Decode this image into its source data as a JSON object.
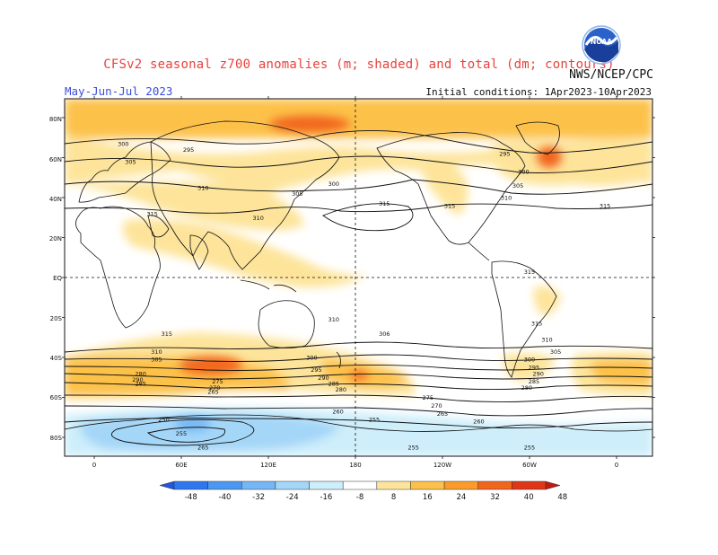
{
  "title": "CFSv2 seasonal z700 anomalies (m; shaded) and total (dm; contours)",
  "agency": "NWS/NCEP/CPC",
  "period": "May-Jun-Jul 2023",
  "initial_conditions": "Initial conditions: 1Apr2023-10Apr2023",
  "logo_text": "NOAA",
  "lat_labels": [
    "80N",
    "60N",
    "40N",
    "20N",
    "EQ",
    "20S",
    "40S",
    "60S",
    "80S"
  ],
  "lon_labels": [
    "0",
    "60E",
    "120E",
    "180",
    "120W",
    "60W",
    "0"
  ],
  "colorbar": {
    "ticks": [
      "-48",
      "-40",
      "-32",
      "-24",
      "-16",
      "-8",
      "8",
      "16",
      "24",
      "32",
      "40",
      "48"
    ],
    "colors": [
      "#2355e0",
      "#2f77ee",
      "#4a98f2",
      "#75b6f4",
      "#a4d6f8",
      "#cdeefa",
      "#ffffff",
      "#fde49a",
      "#fcc14a",
      "#fa9b2a",
      "#f2651c",
      "#e03516",
      "#c21a10"
    ]
  },
  "contour_labels": [
    {
      "text": "300",
      "lon": 20,
      "lat": 67
    },
    {
      "text": "295",
      "lon": 65,
      "lat": 64
    },
    {
      "text": "305",
      "lon": 25,
      "lat": 58
    },
    {
      "text": "310",
      "lon": 75,
      "lat": 45
    },
    {
      "text": "315",
      "lon": 40,
      "lat": 32
    },
    {
      "text": "310",
      "lon": 113,
      "lat": 30
    },
    {
      "text": "305",
      "lon": 140,
      "lat": 42
    },
    {
      "text": "300",
      "lon": 165,
      "lat": 47
    },
    {
      "text": "315",
      "lon": 200,
      "lat": 37
    },
    {
      "text": "315",
      "lon": 245,
      "lat": 36
    },
    {
      "text": "310",
      "lon": 284,
      "lat": 40
    },
    {
      "text": "305",
      "lon": 292,
      "lat": 46
    },
    {
      "text": "300",
      "lon": 296,
      "lat": 53
    },
    {
      "text": "295",
      "lon": 283,
      "lat": 62
    },
    {
      "text": "315",
      "lon": 352,
      "lat": 36
    },
    {
      "text": "315",
      "lon": 300,
      "lat": 3
    },
    {
      "text": "315",
      "lon": 305,
      "lat": -23
    },
    {
      "text": "310",
      "lon": 165,
      "lat": -21
    },
    {
      "text": "315",
      "lon": 50,
      "lat": -28
    },
    {
      "text": "306",
      "lon": 200,
      "lat": -28
    },
    {
      "text": "310",
      "lon": 312,
      "lat": -31
    },
    {
      "text": "305",
      "lon": 318,
      "lat": -37
    },
    {
      "text": "310",
      "lon": 43,
      "lat": -37
    },
    {
      "text": "305",
      "lon": 43,
      "lat": -41
    },
    {
      "text": "300",
      "lon": 150,
      "lat": -40
    },
    {
      "text": "295",
      "lon": 153,
      "lat": -46
    },
    {
      "text": "290",
      "lon": 158,
      "lat": -50
    },
    {
      "text": "285",
      "lon": 165,
      "lat": -53
    },
    {
      "text": "280",
      "lon": 170,
      "lat": -56
    },
    {
      "text": "300",
      "lon": 300,
      "lat": -41
    },
    {
      "text": "295",
      "lon": 303,
      "lat": -45
    },
    {
      "text": "290",
      "lon": 306,
      "lat": -48
    },
    {
      "text": "285",
      "lon": 303,
      "lat": -52
    },
    {
      "text": "280",
      "lon": 298,
      "lat": -55
    },
    {
      "text": "280",
      "lon": 32,
      "lat": -48
    },
    {
      "text": "290",
      "lon": 30,
      "lat": -51
    },
    {
      "text": "285",
      "lon": 32,
      "lat": -53
    },
    {
      "text": "275",
      "lon": 85,
      "lat": -52
    },
    {
      "text": "270",
      "lon": 83,
      "lat": -55
    },
    {
      "text": "265",
      "lon": 82,
      "lat": -57
    },
    {
      "text": "275",
      "lon": 230,
      "lat": -60
    },
    {
      "text": "270",
      "lon": 236,
      "lat": -64
    },
    {
      "text": "265",
      "lon": 240,
      "lat": -68
    },
    {
      "text": "260",
      "lon": 265,
      "lat": -72
    },
    {
      "text": "260",
      "lon": 168,
      "lat": -67
    },
    {
      "text": "255",
      "lon": 193,
      "lat": -71
    },
    {
      "text": "250",
      "lon": 48,
      "lat": -71
    },
    {
      "text": "255",
      "lon": 60,
      "lat": -78
    },
    {
      "text": "265",
      "lon": 75,
      "lat": -85
    },
    {
      "text": "255",
      "lon": 220,
      "lat": -85
    },
    {
      "text": "255",
      "lon": 300,
      "lat": -85
    }
  ]
}
